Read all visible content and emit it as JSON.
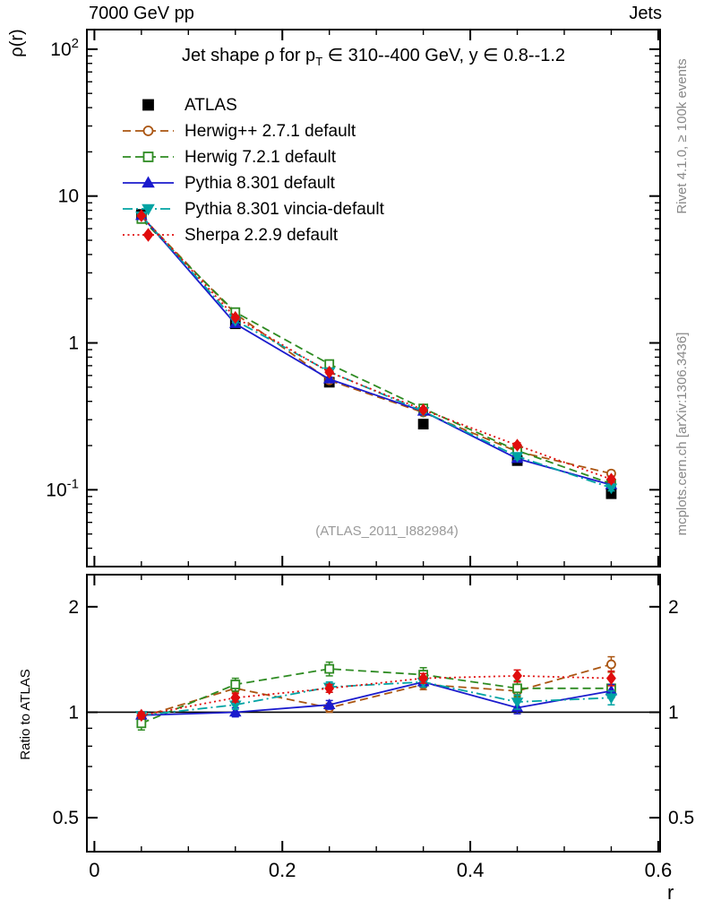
{
  "header": {
    "left": "7000 GeV pp",
    "right": "Jets"
  },
  "side_labels": {
    "top_right": "Rivet 4.1.0, ≥ 100k events",
    "bottom_right": "mcplots.cern.ch [arXiv:1306.3436]"
  },
  "watermark": "(ATLAS_2011_I882984)",
  "title": {
    "pre": "Jet shape ρ for p",
    "sub": "T",
    "post": " ∈ 310--400 GeV, y ∈ 0.8--1.2"
  },
  "chart_data": {
    "type": "line",
    "x": [
      0.05,
      0.15,
      0.25,
      0.35,
      0.45,
      0.55
    ],
    "xlabel": "r",
    "xlim": [
      -0.008,
      0.602
    ],
    "x_ticks": [
      0,
      0.2,
      0.4,
      0.6
    ],
    "x_minor_step": 0.05,
    "main_panel": {
      "ylabel": "ρ(r)",
      "yscale": "log",
      "ylim": [
        0.03,
        136
      ],
      "y_tick_decades": [
        -1,
        0,
        1,
        2
      ]
    },
    "ratio_panel": {
      "ylabel": "Ratio to ATLAS",
      "yscale": "log",
      "ylim": [
        0.4,
        2.47
      ],
      "y_ticks": [
        0.5,
        1,
        2
      ],
      "reference_line": 1
    },
    "legend_position": "top-left",
    "series": [
      {
        "name": "ATLAS",
        "color": "#000000",
        "marker": "square",
        "open": false,
        "line": "none",
        "is_reference": true,
        "values": [
          7.5,
          1.35,
          0.54,
          0.28,
          0.158,
          0.094
        ],
        "err_rel": [
          0.025,
          0.025,
          0.03,
          0.04,
          0.05,
          0.06
        ]
      },
      {
        "name": "Herwig++ 2.7.1 default",
        "color": "#aa5511",
        "marker": "circle",
        "open": true,
        "line": "dashed",
        "is_reference": false,
        "values": [
          7.28,
          1.58,
          0.556,
          0.336,
          0.182,
          0.129
        ],
        "ratios": [
          0.97,
          1.17,
          1.03,
          1.2,
          1.15,
          1.37
        ],
        "ratio_err": [
          0.02,
          0.03,
          0.03,
          0.04,
          0.05,
          0.07
        ]
      },
      {
        "name": "Herwig 7.2.1 default",
        "color": "#2e8b22",
        "marker": "square",
        "open": true,
        "line": "dashed",
        "is_reference": false,
        "values": [
          6.98,
          1.62,
          0.718,
          0.358,
          0.185,
          0.11
        ],
        "ratios": [
          0.93,
          1.2,
          1.33,
          1.28,
          1.17,
          1.17
        ],
        "ratio_err": [
          0.04,
          0.05,
          0.06,
          0.06,
          0.06,
          0.07
        ]
      },
      {
        "name": "Pythia 8.301 default",
        "color": "#1b1bcd",
        "marker": "triangle-up",
        "open": false,
        "line": "solid",
        "is_reference": false,
        "values": [
          7.35,
          1.35,
          0.567,
          0.342,
          0.163,
          0.108
        ],
        "ratios": [
          0.98,
          1.0,
          1.05,
          1.22,
          1.03,
          1.15
        ],
        "ratio_err": [
          0.02,
          0.03,
          0.03,
          0.04,
          0.04,
          0.05
        ]
      },
      {
        "name": "Pythia 8.301 vincia-default",
        "color": "#00a3a3",
        "marker": "triangle-down",
        "open": false,
        "line": "dashdot",
        "is_reference": false,
        "values": [
          7.35,
          1.42,
          0.637,
          0.342,
          0.169,
          0.103
        ],
        "ratios": [
          0.98,
          1.05,
          1.18,
          1.22,
          1.07,
          1.1
        ],
        "ratio_err": [
          0.02,
          0.03,
          0.04,
          0.04,
          0.05,
          0.05
        ]
      },
      {
        "name": "Sherpa 2.2.9 default",
        "color": "#e00d0d",
        "marker": "diamond",
        "open": false,
        "line": "dotted",
        "is_reference": false,
        "values": [
          7.35,
          1.49,
          0.632,
          0.35,
          0.201,
          0.118
        ],
        "ratios": [
          0.98,
          1.1,
          1.17,
          1.25,
          1.27,
          1.25
        ],
        "ratio_err": [
          0.02,
          0.03,
          0.03,
          0.04,
          0.05,
          0.06
        ]
      }
    ]
  }
}
